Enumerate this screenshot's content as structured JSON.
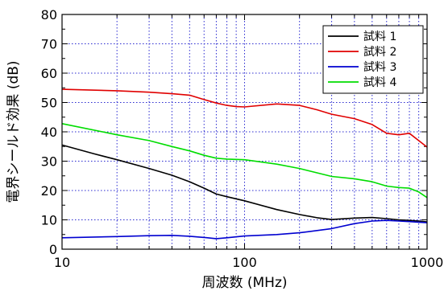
{
  "chart_data": {
    "type": "line",
    "xlabel": "周波数 (MHz)",
    "ylabel": "電界シールド効果 (dB)",
    "xscale": "log",
    "xlim": [
      10,
      1000
    ],
    "ylim": [
      0,
      80
    ],
    "xticks": [
      10,
      100,
      1000
    ],
    "xtick_labels": [
      "10",
      "100",
      "1000"
    ],
    "yticks": [
      0,
      10,
      20,
      30,
      40,
      50,
      60,
      70,
      80
    ],
    "grid": "dotted-blue",
    "legend_position": "top-right",
    "series": [
      {
        "name": "試料 1",
        "color": "#000000",
        "x": [
          10,
          15,
          20,
          30,
          40,
          50,
          60,
          70,
          80,
          100,
          150,
          200,
          250,
          300,
          400,
          500,
          600,
          700,
          800,
          900,
          1000
        ],
        "y": [
          35.5,
          32.5,
          30.5,
          27.5,
          25.2,
          23.0,
          20.8,
          18.8,
          17.9,
          16.5,
          13.5,
          11.8,
          10.7,
          10.1,
          10.6,
          10.8,
          10.4,
          10.0,
          9.8,
          9.6,
          9.3
        ]
      },
      {
        "name": "試料 2",
        "color": "#e00000",
        "x": [
          10,
          20,
          30,
          40,
          50,
          60,
          70,
          80,
          90,
          100,
          150,
          200,
          250,
          300,
          400,
          500,
          600,
          700,
          800,
          900,
          1000
        ],
        "y": [
          54.5,
          54.0,
          53.5,
          53.0,
          52.5,
          51.0,
          49.8,
          49.0,
          48.6,
          48.5,
          49.5,
          49.0,
          47.5,
          46.0,
          44.5,
          42.5,
          39.5,
          39.0,
          39.5,
          37.0,
          34.8
        ]
      },
      {
        "name": "試料 3",
        "color": "#0000d0",
        "x": [
          10,
          20,
          30,
          40,
          50,
          60,
          70,
          80,
          100,
          150,
          200,
          300,
          400,
          500,
          600,
          700,
          800,
          900,
          1000
        ],
        "y": [
          3.9,
          4.3,
          4.6,
          4.7,
          4.4,
          4.0,
          3.6,
          3.9,
          4.5,
          5.0,
          5.6,
          7.0,
          8.7,
          9.6,
          9.8,
          9.6,
          9.4,
          9.2,
          9.0
        ]
      },
      {
        "name": "試料 4",
        "color": "#00dd00",
        "x": [
          10,
          20,
          30,
          40,
          50,
          60,
          70,
          80,
          100,
          150,
          200,
          300,
          400,
          500,
          600,
          700,
          800,
          900,
          1000
        ],
        "y": [
          42.8,
          39.0,
          37.0,
          35.0,
          33.5,
          32.0,
          31.0,
          30.7,
          30.5,
          29.0,
          27.5,
          24.8,
          24.0,
          23.0,
          21.5,
          21.0,
          20.8,
          19.5,
          17.6
        ]
      }
    ]
  }
}
